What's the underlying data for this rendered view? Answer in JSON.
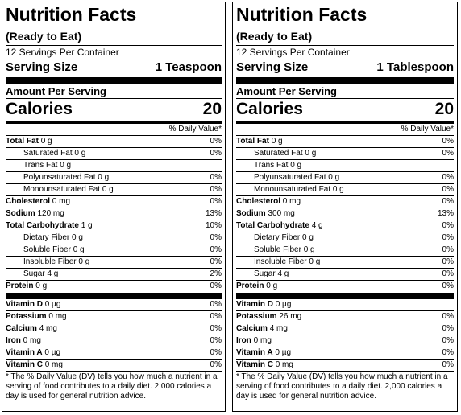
{
  "panels": [
    {
      "title": "Nutrition Facts",
      "subtitle": "(Ready to Eat)",
      "servings_per_container": "12 Servings Per Container",
      "serving_size_label": "Serving Size",
      "serving_size_value": "1 Teaspoon",
      "amount_per_serving": "Amount Per Serving",
      "calories_label": "Calories",
      "calories_value": "20",
      "daily_value_header": "% Daily Value*",
      "nutrients": [
        {
          "name": "Total Fat",
          "amount": "0 g",
          "pct": "0%",
          "bold": true,
          "indent": false
        },
        {
          "name": "Saturated Fat",
          "amount": "0 g",
          "pct": "0%",
          "bold": false,
          "indent": true
        },
        {
          "name": "Trans Fat",
          "amount": "0 g",
          "pct": "",
          "bold": false,
          "indent": true
        },
        {
          "name": "Polyunsaturated Fat",
          "amount": "0 g",
          "pct": "0%",
          "bold": false,
          "indent": true
        },
        {
          "name": "Monounsaturated Fat",
          "amount": "0 g",
          "pct": "0%",
          "bold": false,
          "indent": true
        },
        {
          "name": "Cholesterol",
          "amount": "0 mg",
          "pct": "0%",
          "bold": true,
          "indent": false
        },
        {
          "name": "Sodium",
          "amount": "120 mg",
          "pct": "13%",
          "bold": true,
          "indent": false
        },
        {
          "name": "Total Carbohydrate",
          "amount": "1 g",
          "pct": "10%",
          "bold": true,
          "indent": false
        },
        {
          "name": "Dietary Fiber",
          "amount": "0 g",
          "pct": "0%",
          "bold": false,
          "indent": true
        },
        {
          "name": "Soluble Fiber",
          "amount": "0 g",
          "pct": "0%",
          "bold": false,
          "indent": true
        },
        {
          "name": "Insoluble Fiber",
          "amount": "0 g",
          "pct": "0%",
          "bold": false,
          "indent": true
        },
        {
          "name": "Sugar",
          "amount": "4 g",
          "pct": "2%",
          "bold": false,
          "indent": true
        },
        {
          "name": "Protein",
          "amount": "0 g",
          "pct": "0%",
          "bold": true,
          "indent": false
        }
      ],
      "vitamins": [
        {
          "name": "Vitamin D",
          "amount": "0 µg",
          "pct": "0%"
        },
        {
          "name": "Potassium",
          "amount": "0 mg",
          "pct": "0%"
        },
        {
          "name": "Calcium",
          "amount": "4 mg",
          "pct": "0%"
        },
        {
          "name": "Iron",
          "amount": "0 mg",
          "pct": "0%"
        },
        {
          "name": "Vitamin A",
          "amount": "0 µg",
          "pct": "0%"
        },
        {
          "name": "Vitamin C",
          "amount": "0 mg",
          "pct": "0%"
        }
      ],
      "footnote": "* The % Daily Value (DV) tells you how much a nutrient in a serving of food contributes to a daily diet. 2,000 calories a day is used for general nutrition advice."
    },
    {
      "title": "Nutrition Facts",
      "subtitle": "(Ready to Eat)",
      "servings_per_container": "12 Servings Per Container",
      "serving_size_label": "Serving Size",
      "serving_size_value": "1 Tablespoon",
      "amount_per_serving": "Amount Per Serving",
      "calories_label": "Calories",
      "calories_value": "20",
      "daily_value_header": "% Daily Value*",
      "nutrients": [
        {
          "name": "Total Fat",
          "amount": "0 g",
          "pct": "0%",
          "bold": true,
          "indent": false
        },
        {
          "name": "Saturated Fat",
          "amount": "0 g",
          "pct": "0%",
          "bold": false,
          "indent": true
        },
        {
          "name": "Trans Fat",
          "amount": "0 g",
          "pct": "",
          "bold": false,
          "indent": true
        },
        {
          "name": "Polyunsaturated Fat",
          "amount": "0 g",
          "pct": "0%",
          "bold": false,
          "indent": true
        },
        {
          "name": "Monounsaturated Fat",
          "amount": "0 g",
          "pct": "0%",
          "bold": false,
          "indent": true
        },
        {
          "name": "Cholesterol",
          "amount": "0 mg",
          "pct": "0%",
          "bold": true,
          "indent": false
        },
        {
          "name": "Sodium",
          "amount": "300 mg",
          "pct": "13%",
          "bold": true,
          "indent": false
        },
        {
          "name": "Total Carbohydrate",
          "amount": "4 g",
          "pct": "0%",
          "bold": true,
          "indent": false
        },
        {
          "name": "Dietary Fiber",
          "amount": "0 g",
          "pct": "0%",
          "bold": false,
          "indent": true
        },
        {
          "name": "Soluble Fiber",
          "amount": "0 g",
          "pct": "0%",
          "bold": false,
          "indent": true
        },
        {
          "name": "Insoluble Fiber",
          "amount": "0 g",
          "pct": "0%",
          "bold": false,
          "indent": true
        },
        {
          "name": "Sugar",
          "amount": "4 g",
          "pct": "0%",
          "bold": false,
          "indent": true
        },
        {
          "name": "Protein",
          "amount": "0 g",
          "pct": "0%",
          "bold": true,
          "indent": false
        }
      ],
      "vitamins": [
        {
          "name": "Vitamin D",
          "amount": "0 µg",
          "pct": ""
        },
        {
          "name": "Potassium",
          "amount": "26 mg",
          "pct": "0%"
        },
        {
          "name": "Calcium",
          "amount": "4 mg",
          "pct": "0%"
        },
        {
          "name": "Iron",
          "amount": "0 mg",
          "pct": "0%"
        },
        {
          "name": "Vitamin A",
          "amount": "0 µg",
          "pct": "0%"
        },
        {
          "name": "Vitamin C",
          "amount": "0 mg",
          "pct": "0%"
        }
      ],
      "footnote": "* The % Daily Value (DV) tells you how much a nutrient in a serving of food contributes to a daily diet. 2,000 calories a day is used for general nutrition advice."
    }
  ]
}
